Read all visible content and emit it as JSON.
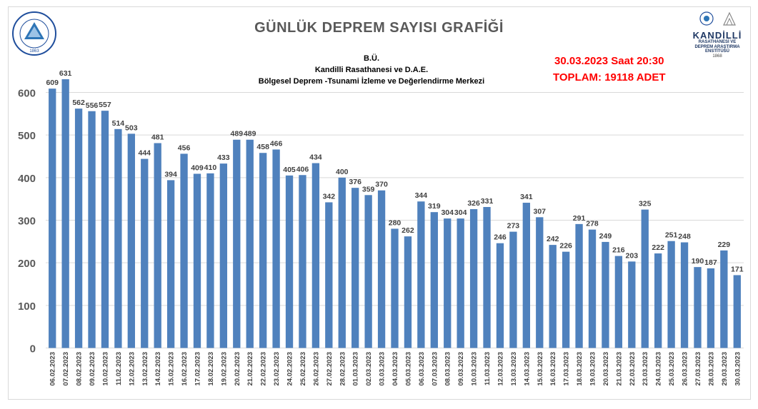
{
  "header": {
    "title": "GÜNLÜK  DEPREM SAYISI GRAFİĞİ",
    "sub1": "B.Ü.",
    "sub2": "Kandilli Rasathanesi ve D.A.E.",
    "sub3": "Bölgesel Deprem -Tsunami İzleme ve Değerlendirme Merkezi",
    "date_line": "30.03.2023 Saat 20:30",
    "total_line": "TOPLAM:  19118 ADET"
  },
  "logo_left": {
    "ring_text": "BOĞAZİÇİ ÜNİVERSİTESİ",
    "year": "1863"
  },
  "logo_right": {
    "name": "KANDİLLİ",
    "line1": "RASATHANESİ VE",
    "line2": "DEPREM ARAŞTIRMA",
    "line3": "ENSTİTÜSÜ",
    "year": "1868"
  },
  "colors": {
    "bar": "#4f81bd",
    "grid": "#d9d9d9",
    "title": "#595959",
    "highlight": "#ff0000"
  },
  "chart_data": {
    "type": "bar",
    "categories": [
      "06.02.2023",
      "07.02.2023",
      "08.02.2023",
      "09.02.2023",
      "10.02.2023",
      "11.02.2023",
      "12.02.2023",
      "13.02.2023",
      "14.02.2023",
      "15.02.2023",
      "16.02.2023",
      "17.02.2023",
      "18.02.2023",
      "19.02.2023",
      "20.02.2023",
      "21.02.2023",
      "22.02.2023",
      "23.02.2023",
      "24.02.2023",
      "25.02.2023",
      "26.02.2023",
      "27.02.2023",
      "28.02.2023",
      "01.03.2023",
      "02.03.2023",
      "03.03.2023",
      "04.03.2023",
      "05.03.2023",
      "06.03.2023",
      "07.03.2023",
      "08.03.2023",
      "09.03.2023",
      "10.03.2023",
      "11.03.2023",
      "12.03.2023",
      "13.03.2023",
      "14.03.2023",
      "15.03.2023",
      "16.03.2023",
      "17.03.2023",
      "18.03.2023",
      "19.03.2023",
      "20.03.2023",
      "21.03.2023",
      "22.03.2023",
      "23.03.2023",
      "24.03.2023",
      "25.03.2023",
      "26.03.2023",
      "27.03.2023",
      "28.03.2023",
      "29.03.2023",
      "30.03.2023"
    ],
    "values": [
      609,
      631,
      562,
      556,
      557,
      514,
      503,
      444,
      481,
      394,
      456,
      409,
      410,
      433,
      489,
      489,
      458,
      466,
      405,
      406,
      434,
      342,
      400,
      376,
      359,
      370,
      280,
      262,
      344,
      319,
      304,
      304,
      326,
      331,
      246,
      273,
      341,
      307,
      242,
      226,
      291,
      278,
      249,
      216,
      203,
      325,
      222,
      251,
      248,
      190,
      187,
      229,
      171
    ],
    "yticks": [
      0,
      100,
      200,
      300,
      400,
      500,
      600
    ],
    "ylim": [
      0,
      700
    ],
    "grid": true,
    "xlabel": "",
    "ylabel": ""
  }
}
